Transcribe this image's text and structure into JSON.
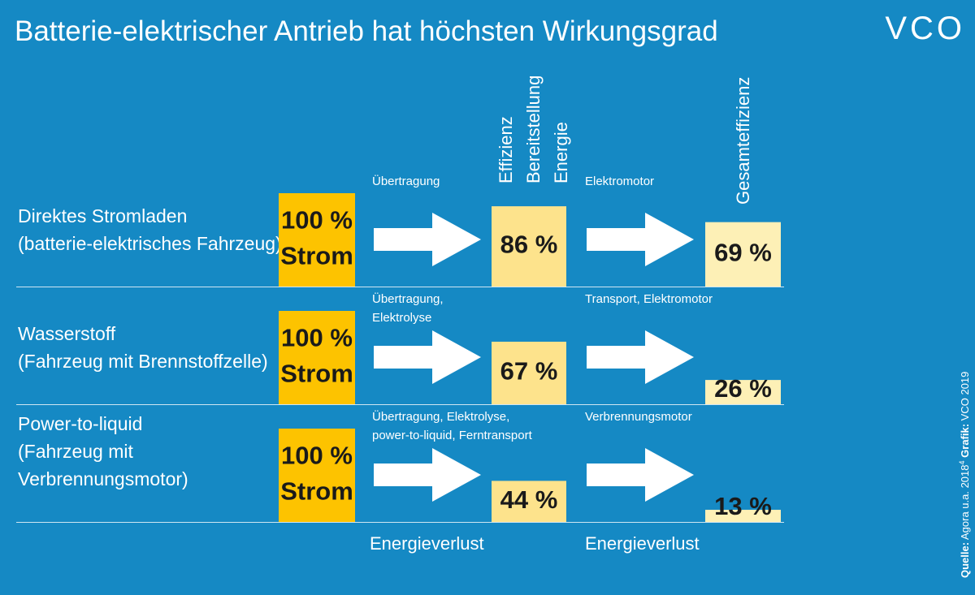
{
  "title": "Batterie-elektrischer Antrieb hat höchsten Wirkungsgrad",
  "logo": "VCO",
  "source": {
    "source_label": "Quelle:",
    "source_text": "Agora u.a. 2018",
    "footnote": "4",
    "graphic_label": "Grafik:",
    "graphic_text": "VCO 2019"
  },
  "columns": {
    "efficiency": [
      "Effizienz",
      "Bereitstellung",
      "Energie"
    ],
    "total": "Gesamteffizienz"
  },
  "rows": [
    {
      "label": [
        "Direktes Stromladen",
        "(batterie-elektrisches Fahrzeug)"
      ],
      "start": {
        "value": 100,
        "label": "100 %",
        "text": "Strom"
      },
      "step1": [
        "Übertragung"
      ],
      "mid": {
        "value": 86,
        "label": "86 %"
      },
      "step2": [
        "Elektromotor"
      ],
      "end": {
        "value": 69,
        "label": "69 %"
      }
    },
    {
      "label": [
        "Wasserstoff",
        "(Fahrzeug mit Brennstoffzelle)"
      ],
      "start": {
        "value": 100,
        "label": "100 %",
        "text": "Strom"
      },
      "step1": [
        "Übertragung,",
        "Elektrolyse"
      ],
      "mid": {
        "value": 67,
        "label": "67 %"
      },
      "step2": [
        "Transport, Elektromotor"
      ],
      "end": {
        "value": 26,
        "label": "26 %"
      }
    },
    {
      "label": [
        "Power-to-liquid",
        "(Fahrzeug mit",
        "Verbrennungsmotor)"
      ],
      "start": {
        "value": 100,
        "label": "100 %",
        "text": "Strom"
      },
      "step1": [
        "Übertragung, Elektrolyse,",
        "power-to-liquid, Ferntransport"
      ],
      "mid": {
        "value": 44,
        "label": "44 %"
      },
      "step2": [
        "Verbrennungsmotor"
      ],
      "end": {
        "value": 13,
        "label": "13 %"
      }
    }
  ],
  "footer": [
    "Energieverlust",
    "Energieverlust"
  ]
}
